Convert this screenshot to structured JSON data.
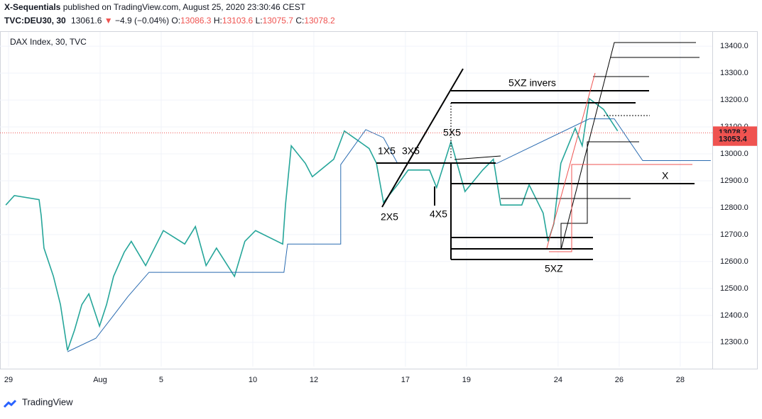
{
  "header": {
    "publisher": "X-Sequentials",
    "published": "published on TradingView.com, August 25, 2020 23:30:46 CEST",
    "symbol": "TVC:DEU30, 30",
    "last": "13061.6",
    "arrow": "▼",
    "change": "−4.9 (−0.04%)",
    "open_label": "O:",
    "open": "13086.3",
    "high_label": "H:",
    "high": "13103.6",
    "low_label": "L:",
    "low": "13075.7",
    "close_label": "C:",
    "close": "13078.2"
  },
  "footer": {
    "brand": "TradingView"
  },
  "chart_data": {
    "type": "line",
    "title": "DAX Index, 30, TVC",
    "series": [
      {
        "color": "#26a69a",
        "x": [
          -0.09,
          0.19,
          1.0,
          1.07,
          1.16,
          1.47,
          1.7,
          1.93,
          2.16,
          2.4,
          2.63,
          2.98,
          3.21,
          3.44,
          3.79,
          4.02,
          4.49,
          5.07,
          5.77,
          6.12,
          6.47,
          6.81,
          7.4,
          7.74,
          8.09,
          8.98,
          9.07,
          9.26,
          9.72,
          9.95,
          10.65,
          11.0,
          11.81,
          12.05,
          12.28,
          12.74,
          13.09,
          13.79,
          14.02,
          14.49,
          14.95,
          15.53,
          15.88,
          16.12,
          16.81,
          17.05,
          17.51,
          17.67,
          17.86,
          18.09,
          18.56,
          18.79,
          19.02,
          19.49,
          19.95
        ],
        "values": [
          12810,
          12845,
          12830,
          12770,
          12650,
          12545,
          12440,
          12270,
          12345,
          12440,
          12480,
          12360,
          12440,
          12545,
          12635,
          12675,
          12585,
          12715,
          12665,
          12730,
          12585,
          12650,
          12545,
          12675,
          12715,
          12665,
          12810,
          13030,
          12965,
          12915,
          12980,
          13085,
          13020,
          12965,
          12820,
          12885,
          12940,
          12940,
          12875,
          13045,
          12860,
          12940,
          12980,
          12810,
          12810,
          12885,
          12780,
          12675,
          12740,
          12965,
          13095,
          13030,
          13205,
          13165,
          13085
        ]
      },
      {
        "color": "#2a6bb0",
        "x": [
          1.93,
          2.86,
          3.44,
          3.91,
          4.6,
          9.02,
          9.14,
          10.88,
          10.88,
          11.7,
          12.28,
          12.74,
          16.0,
          19.02,
          19.84,
          20.77,
          23.0
        ],
        "values": [
          12265,
          12315,
          12400,
          12470,
          12560,
          12560,
          12665,
          12665,
          12960,
          13090,
          13060,
          12965,
          12965,
          13130,
          13130,
          12975,
          12975
        ]
      }
    ],
    "xlim": [
      -0.28,
      23.05
    ],
    "xticks": [
      {
        "value": 0,
        "label": "29"
      },
      {
        "value": 3,
        "label": "Aug"
      },
      {
        "value": 5,
        "label": "5"
      },
      {
        "value": 8,
        "label": "10"
      },
      {
        "value": 10,
        "label": "12"
      },
      {
        "value": 13,
        "label": "17"
      },
      {
        "value": 15,
        "label": "19"
      },
      {
        "value": 18,
        "label": "24"
      },
      {
        "value": 20,
        "label": "26"
      },
      {
        "value": 22,
        "label": "28"
      }
    ],
    "ylim": [
      12210,
      13453
    ],
    "yticks": [
      {
        "value": 12300,
        "label": "12300.0"
      },
      {
        "value": 12400,
        "label": "12400.0"
      },
      {
        "value": 12500,
        "label": "12500.0"
      },
      {
        "value": 12600,
        "label": "12600.0"
      },
      {
        "value": 12700,
        "label": "12700.0"
      },
      {
        "value": 12800,
        "label": "12800.0"
      },
      {
        "value": 12900,
        "label": "12900.0"
      },
      {
        "value": 13000,
        "label": "13000.0"
      },
      {
        "value": 13100,
        "label": "13100.0"
      },
      {
        "value": 13200,
        "label": "13200.0"
      },
      {
        "value": 13300,
        "label": "13300.0"
      },
      {
        "value": 13400,
        "label": "13400.0"
      }
    ],
    "grid": true,
    "price_labels": [
      {
        "value": 13078.2,
        "label": "13078.2"
      },
      {
        "value": 13053.4,
        "label": "13053.4"
      }
    ],
    "annotations": [
      "5XZ invers",
      "5X5",
      "1X5",
      "3X5",
      "2X5",
      "4X5",
      "5XZ",
      "X"
    ]
  }
}
